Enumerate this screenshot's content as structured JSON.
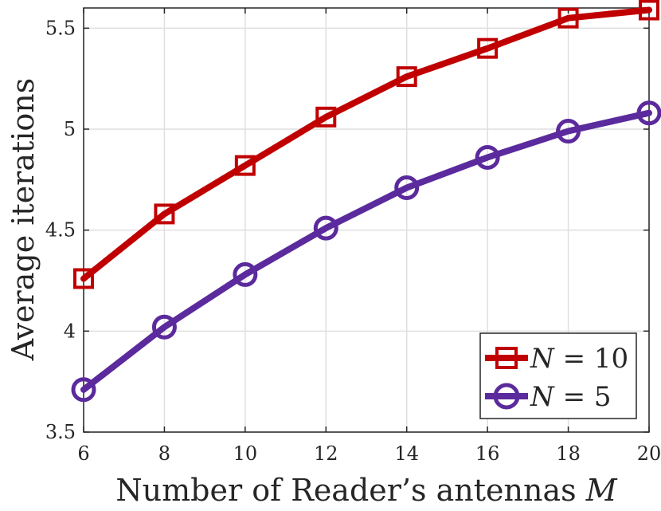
{
  "chart_data": {
    "type": "line",
    "x": [
      6,
      8,
      10,
      12,
      14,
      16,
      18,
      20
    ],
    "series": [
      {
        "name": "N = 10",
        "legend_var": "N",
        "legend_op": "=",
        "legend_val": "10",
        "values": [
          4.26,
          4.58,
          4.82,
          5.06,
          5.26,
          5.4,
          5.55,
          5.59
        ],
        "color": "#C00000",
        "marker": "square"
      },
      {
        "name": "N = 5",
        "legend_var": "N",
        "legend_op": "=",
        "legend_val": "5",
        "values": [
          3.71,
          4.02,
          4.28,
          4.51,
          4.71,
          4.86,
          4.99,
          5.08
        ],
        "color": "#5B2A9D",
        "marker": "circle"
      }
    ],
    "xlabel_text": "Number of Reader’s antennas",
    "xlabel_var": "M",
    "ylabel": "Average iterations",
    "xlim": [
      6,
      20
    ],
    "ylim": [
      3.5,
      5.6
    ],
    "xticks": [
      "6",
      "8",
      "10",
      "12",
      "14",
      "16",
      "18",
      "20"
    ],
    "yticks": [
      "3.5",
      "4",
      "4.5",
      "5",
      "5.5"
    ],
    "grid": true,
    "legend_position": "bottom-right"
  }
}
